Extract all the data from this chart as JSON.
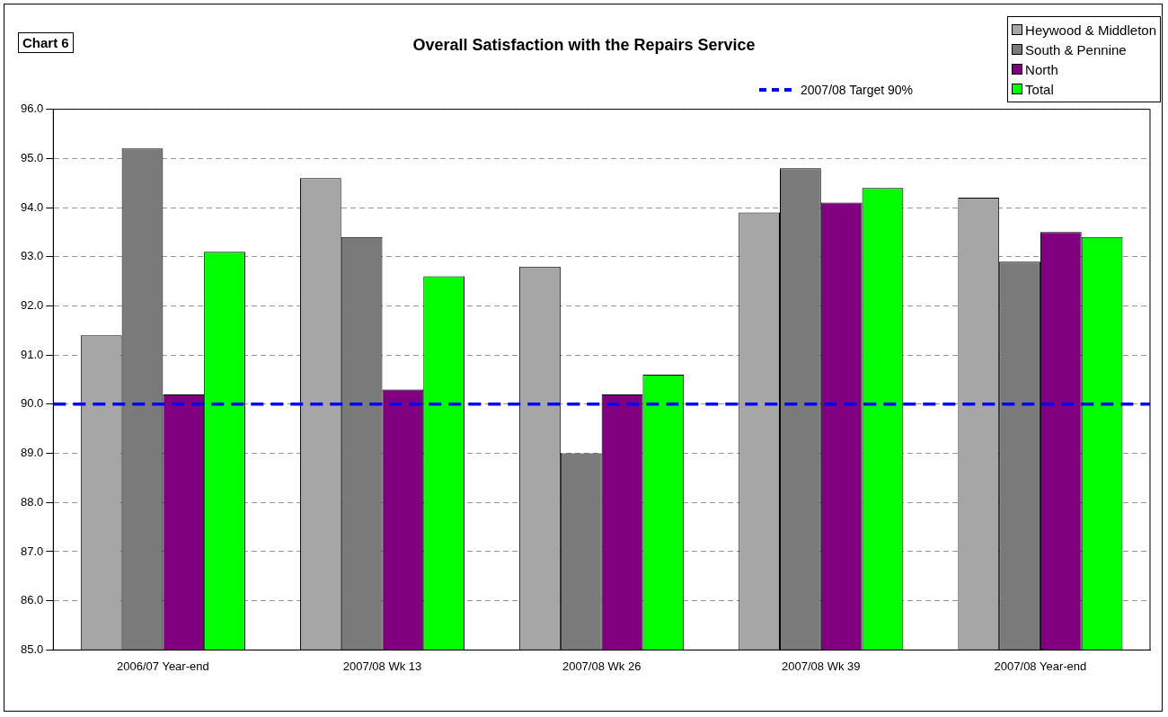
{
  "chart_data": {
    "type": "bar",
    "title": "Overall Satisfaction with the Repairs Service",
    "categories": [
      "2006/07 Year-end",
      "2007/08 Wk 13",
      "2007/08 Wk 26",
      "2007/08 Wk 39",
      "2007/08 Year-end"
    ],
    "series": [
      {
        "name": "Heywood & Middleton",
        "color": "#a6a6a6",
        "values": [
          91.4,
          94.6,
          92.8,
          93.9,
          94.2
        ]
      },
      {
        "name": "South & Pennine",
        "color": "#7a7a7a",
        "values": [
          95.2,
          93.4,
          89.0,
          94.8,
          92.9
        ]
      },
      {
        "name": "North",
        "color": "#800080",
        "values": [
          90.2,
          90.3,
          90.2,
          94.1,
          93.5
        ]
      },
      {
        "name": "Total",
        "color": "#00ff00",
        "values": [
          93.1,
          92.6,
          90.6,
          94.4,
          93.4
        ]
      }
    ],
    "ylim": [
      85,
      96
    ],
    "yticks": [
      {
        "value": 85,
        "label": "85.0"
      },
      {
        "value": 86,
        "label": "86.0"
      },
      {
        "value": 87,
        "label": "87.0"
      },
      {
        "value": 88,
        "label": "88.0"
      },
      {
        "value": 89,
        "label": "89.0"
      },
      {
        "value": 90,
        "label": "90.0"
      },
      {
        "value": 91,
        "label": "91.0"
      },
      {
        "value": 92,
        "label": "92.0"
      },
      {
        "value": 93,
        "label": "93.0"
      },
      {
        "value": 94,
        "label": "94.0"
      },
      {
        "value": 95,
        "label": "95.0"
      },
      {
        "value": 96,
        "label": "96.0"
      }
    ],
    "ref_lines": [
      {
        "axis": "y",
        "value": 90,
        "label": "2007/08 Target 90%",
        "color": "#0000ff",
        "line_style": "dashed"
      }
    ],
    "annotations": [
      "Chart 6"
    ],
    "grid": "y",
    "legend": "top right"
  }
}
